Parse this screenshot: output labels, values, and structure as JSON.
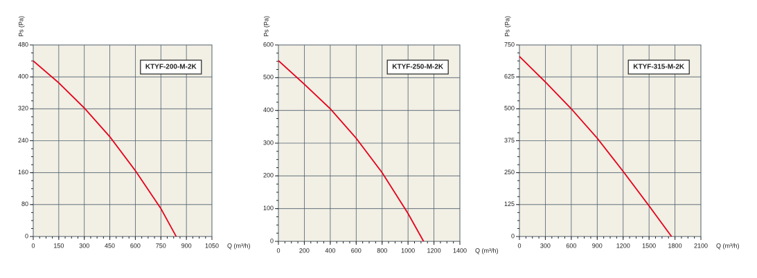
{
  "chart_data": [
    {
      "type": "line",
      "annotation": "KTYF-200-M-2K",
      "x_label": "Q (m³/h)",
      "y_label": "Ps (Pa)",
      "x": [
        0,
        150,
        300,
        450,
        600,
        750,
        840
      ],
      "series": [
        {
          "color": "#e3001b",
          "values": [
            440,
            385,
            322,
            250,
            165,
            70,
            0
          ]
        }
      ],
      "xlim": [
        0,
        1050
      ],
      "xticks": [
        0,
        150,
        300,
        450,
        600,
        750,
        900,
        1050
      ],
      "ylim": [
        0,
        480
      ],
      "yticks": [
        0,
        80,
        160,
        240,
        320,
        400,
        480
      ],
      "grid": true
    },
    {
      "type": "line",
      "annotation": "KTYF-250-M-2K",
      "x_label": "Q (m³/h)",
      "y_label": "Ps (Pa)",
      "x": [
        0,
        200,
        400,
        600,
        800,
        1000,
        1120
      ],
      "series": [
        {
          "color": "#e3001b",
          "values": [
            552,
            480,
            405,
            315,
            210,
            85,
            0
          ]
        }
      ],
      "xlim": [
        0,
        1400
      ],
      "xticks": [
        0,
        200,
        400,
        600,
        800,
        1000,
        1200,
        1400
      ],
      "ylim": [
        0,
        600
      ],
      "yticks": [
        0,
        100,
        200,
        300,
        400,
        500,
        600
      ],
      "grid": true
    },
    {
      "type": "line",
      "annotation": "KTYF-315-M-2K",
      "x_label": "Q (m³/h)",
      "y_label": "Ps (Pa)",
      "x": [
        0,
        300,
        600,
        900,
        1200,
        1500,
        1760
      ],
      "series": [
        {
          "color": "#e3001b",
          "values": [
            705,
            605,
            500,
            385,
            255,
            120,
            0
          ]
        }
      ],
      "xlim": [
        0,
        2100
      ],
      "xticks": [
        0,
        300,
        600,
        900,
        1200,
        1500,
        1800,
        2100
      ],
      "ylim": [
        0,
        750
      ],
      "yticks": [
        0,
        125,
        250,
        375,
        500,
        625,
        750
      ],
      "grid": true
    }
  ]
}
